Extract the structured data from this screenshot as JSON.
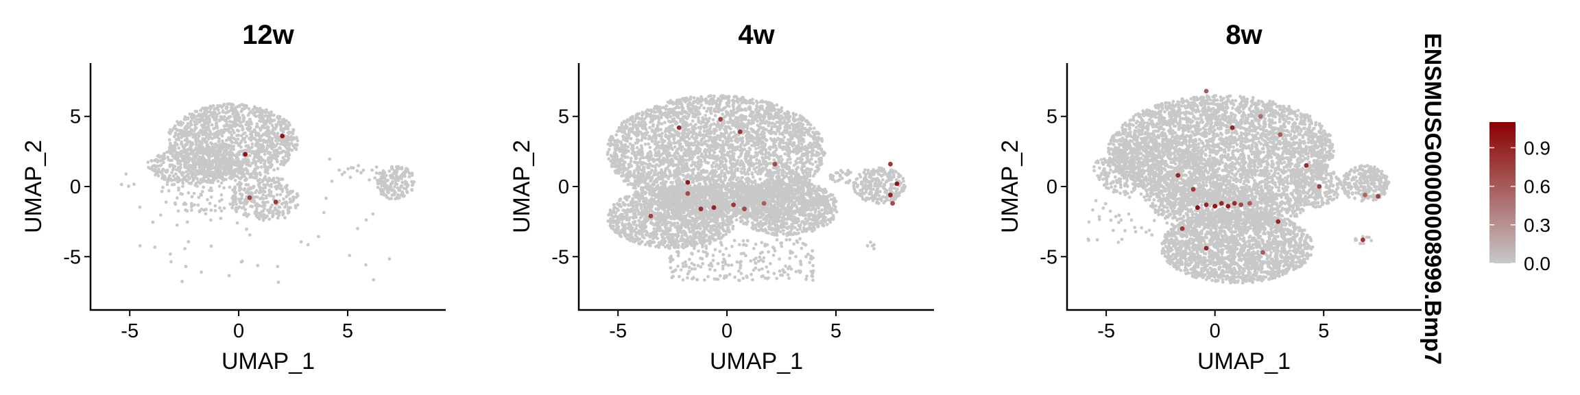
{
  "chart_data": {
    "type": "scatter",
    "side_label": "ENSMUSG00000008999.Bmp7",
    "colors": {
      "low": "#c8c8c8",
      "high": "#8b0000"
    },
    "legend": {
      "placement": "right",
      "range": [
        0.0,
        1.1
      ],
      "ticks": [
        {
          "value": 0.9,
          "label": "0.9"
        },
        {
          "value": 0.6,
          "label": "0.6"
        },
        {
          "value": 0.3,
          "label": "0.3"
        },
        {
          "value": 0.0,
          "label": "0.0"
        }
      ]
    },
    "panels": [
      {
        "title": "12w",
        "xlabel": "UMAP_1",
        "ylabel": "UMAP_2",
        "xlim": [
          -6.8,
          9.5
        ],
        "ylim": [
          -8.8,
          8.8
        ],
        "xticks": [
          {
            "value": -5,
            "label": "-5"
          },
          {
            "value": 0,
            "label": "0"
          },
          {
            "value": 5,
            "label": "5"
          }
        ],
        "yticks": [
          {
            "value": 5,
            "label": "5"
          },
          {
            "value": 0,
            "label": "0"
          },
          {
            "value": -5,
            "label": "-5"
          }
        ],
        "cloud": [
          {
            "type": "ellipse",
            "cx": -0.3,
            "cy": 3.2,
            "rx": 3.0,
            "ry": 2.7,
            "n": 1300
          },
          {
            "type": "ellipse",
            "cx": -2.0,
            "cy": 1.5,
            "rx": 2.2,
            "ry": 1.3,
            "n": 400
          },
          {
            "type": "ellipse",
            "cx": 1.2,
            "cy": -0.8,
            "rx": 1.6,
            "ry": 1.6,
            "n": 260
          },
          {
            "type": "ellipse",
            "cx": -1.5,
            "cy": -0.5,
            "rx": 2.2,
            "ry": 1.5,
            "n": 100
          },
          {
            "type": "ellipse",
            "cx": 7.2,
            "cy": 0.3,
            "rx": 0.9,
            "ry": 1.2,
            "n": 160
          },
          {
            "type": "ellipse",
            "cx": 5.6,
            "cy": 1.0,
            "rx": 1.0,
            "ry": 0.6,
            "n": 15
          },
          {
            "type": "scatter",
            "cx": 0.5,
            "cy": -2.5,
            "rx": 6.5,
            "ry": 4.5,
            "n": 70
          }
        ],
        "expressing": [
          {
            "x": 0.3,
            "y": 2.3,
            "v": 1.0
          },
          {
            "x": 2.0,
            "y": 3.6,
            "v": 1.0
          },
          {
            "x": 0.5,
            "y": -0.8,
            "v": 0.75
          },
          {
            "x": 1.7,
            "y": -1.1,
            "v": 0.8
          }
        ]
      },
      {
        "title": "4w",
        "xlabel": "UMAP_1",
        "ylabel": "UMAP_2",
        "xlim": [
          -6.8,
          9.5
        ],
        "ylim": [
          -8.8,
          8.8
        ],
        "xticks": [
          {
            "value": -5,
            "label": "-5"
          },
          {
            "value": 0,
            "label": "0"
          },
          {
            "value": 5,
            "label": "5"
          }
        ],
        "yticks": [
          {
            "value": 5,
            "label": "5"
          },
          {
            "value": 0,
            "label": "0"
          },
          {
            "value": -5,
            "label": "-5"
          }
        ],
        "cloud": [
          {
            "type": "ellipse",
            "cx": -0.5,
            "cy": 2.5,
            "rx": 5.0,
            "ry": 4.0,
            "n": 3200
          },
          {
            "type": "ellipse",
            "cx": -2.5,
            "cy": -2.2,
            "rx": 3.0,
            "ry": 2.2,
            "n": 1300
          },
          {
            "type": "ellipse",
            "cx": 2.7,
            "cy": -1.5,
            "rx": 2.4,
            "ry": 2.0,
            "n": 900
          },
          {
            "type": "ellipse",
            "cx": 0.5,
            "cy": -1.0,
            "rx": 4.0,
            "ry": 1.2,
            "n": 800
          },
          {
            "type": "ellipse",
            "cx": 7.0,
            "cy": 0.1,
            "rx": 1.2,
            "ry": 1.3,
            "n": 260
          },
          {
            "type": "ellipse",
            "cx": 5.3,
            "cy": 0.7,
            "rx": 0.6,
            "ry": 0.5,
            "n": 30
          },
          {
            "type": "scatter",
            "cx": 0.8,
            "cy": -5.2,
            "rx": 3.5,
            "ry": 1.5,
            "n": 220
          },
          {
            "type": "ellipse",
            "cx": 6.6,
            "cy": -4.2,
            "rx": 0.3,
            "ry": 0.3,
            "n": 6
          }
        ],
        "expressing": [
          {
            "x": -2.2,
            "y": 4.2,
            "v": 0.85
          },
          {
            "x": -0.3,
            "y": 4.8,
            "v": 0.75
          },
          {
            "x": 0.6,
            "y": 3.9,
            "v": 0.8
          },
          {
            "x": -1.8,
            "y": 0.3,
            "v": 1.0
          },
          {
            "x": -1.8,
            "y": -0.5,
            "v": 0.7
          },
          {
            "x": 2.2,
            "y": 1.6,
            "v": 0.7
          },
          {
            "x": -3.5,
            "y": -2.1,
            "v": 0.75
          },
          {
            "x": -1.2,
            "y": -1.6,
            "v": 0.85
          },
          {
            "x": -0.6,
            "y": -1.5,
            "v": 0.9
          },
          {
            "x": 0.3,
            "y": -1.3,
            "v": 0.8
          },
          {
            "x": 0.8,
            "y": -1.6,
            "v": 0.7
          },
          {
            "x": 1.7,
            "y": -1.2,
            "v": 0.6
          },
          {
            "x": 7.5,
            "y": 1.6,
            "v": 0.8
          },
          {
            "x": 7.8,
            "y": 0.2,
            "v": 1.0
          },
          {
            "x": 7.5,
            "y": -0.6,
            "v": 0.9
          },
          {
            "x": 7.6,
            "y": -1.2,
            "v": 0.7
          }
        ]
      },
      {
        "title": "8w",
        "xlabel": "UMAP_1",
        "ylabel": "UMAP_2",
        "xlim": [
          -6.8,
          9.5
        ],
        "ylim": [
          -8.8,
          8.8
        ],
        "xticks": [
          {
            "value": -5,
            "label": "-5"
          },
          {
            "value": 0,
            "label": "0"
          },
          {
            "value": 5,
            "label": "5"
          }
        ],
        "yticks": [
          {
            "value": 5,
            "label": "5"
          },
          {
            "value": 0,
            "label": "0"
          },
          {
            "value": -5,
            "label": "-5"
          }
        ],
        "cloud": [
          {
            "type": "ellipse",
            "cx": 0.3,
            "cy": 2.6,
            "rx": 5.2,
            "ry": 3.9,
            "n": 3400
          },
          {
            "type": "ellipse",
            "cx": -2.8,
            "cy": 1.2,
            "rx": 2.8,
            "ry": 2.2,
            "n": 600
          },
          {
            "type": "ellipse",
            "cx": 0.6,
            "cy": -1.5,
            "rx": 3.6,
            "ry": 1.3,
            "n": 700
          },
          {
            "type": "ellipse",
            "cx": 1.0,
            "cy": -4.3,
            "rx": 3.5,
            "ry": 2.6,
            "n": 1900
          },
          {
            "type": "ellipse",
            "cx": 4.6,
            "cy": 0.0,
            "rx": 1.2,
            "ry": 1.5,
            "n": 250
          },
          {
            "type": "ellipse",
            "cx": 6.9,
            "cy": 0.2,
            "rx": 1.1,
            "ry": 1.3,
            "n": 260
          },
          {
            "type": "scatter",
            "cx": -3.0,
            "cy": -2.5,
            "rx": 3.0,
            "ry": 1.5,
            "n": 60
          },
          {
            "type": "ellipse",
            "cx": 6.8,
            "cy": -3.8,
            "rx": 0.4,
            "ry": 0.3,
            "n": 10
          }
        ],
        "expressing": [
          {
            "x": -0.4,
            "y": 6.8,
            "v": 0.6
          },
          {
            "x": 0.8,
            "y": 4.2,
            "v": 0.9
          },
          {
            "x": 2.1,
            "y": 5.0,
            "v": 0.5
          },
          {
            "x": 3.0,
            "y": 3.7,
            "v": 0.6
          },
          {
            "x": -1.7,
            "y": 0.8,
            "v": 0.9
          },
          {
            "x": -1.0,
            "y": -0.2,
            "v": 0.8
          },
          {
            "x": -0.8,
            "y": -1.5,
            "v": 1.0
          },
          {
            "x": -0.4,
            "y": -1.3,
            "v": 0.9
          },
          {
            "x": 0.0,
            "y": -1.4,
            "v": 1.0
          },
          {
            "x": 0.3,
            "y": -1.2,
            "v": 0.9
          },
          {
            "x": 0.6,
            "y": -1.4,
            "v": 0.95
          },
          {
            "x": 0.9,
            "y": -1.2,
            "v": 0.85
          },
          {
            "x": 1.2,
            "y": -1.3,
            "v": 0.7
          },
          {
            "x": 1.6,
            "y": -1.2,
            "v": 0.6
          },
          {
            "x": 2.9,
            "y": -2.5,
            "v": 0.9
          },
          {
            "x": -1.5,
            "y": -3.0,
            "v": 0.8
          },
          {
            "x": -0.4,
            "y": -4.4,
            "v": 0.9
          },
          {
            "x": 2.2,
            "y": -4.7,
            "v": 0.6
          },
          {
            "x": 4.2,
            "y": 1.5,
            "v": 0.85
          },
          {
            "x": 4.8,
            "y": 0.0,
            "v": 0.75
          },
          {
            "x": 6.9,
            "y": -0.6,
            "v": 0.55
          },
          {
            "x": 7.5,
            "y": -0.7,
            "v": 0.75
          },
          {
            "x": 6.8,
            "y": -3.8,
            "v": 0.8
          }
        ]
      }
    ]
  }
}
